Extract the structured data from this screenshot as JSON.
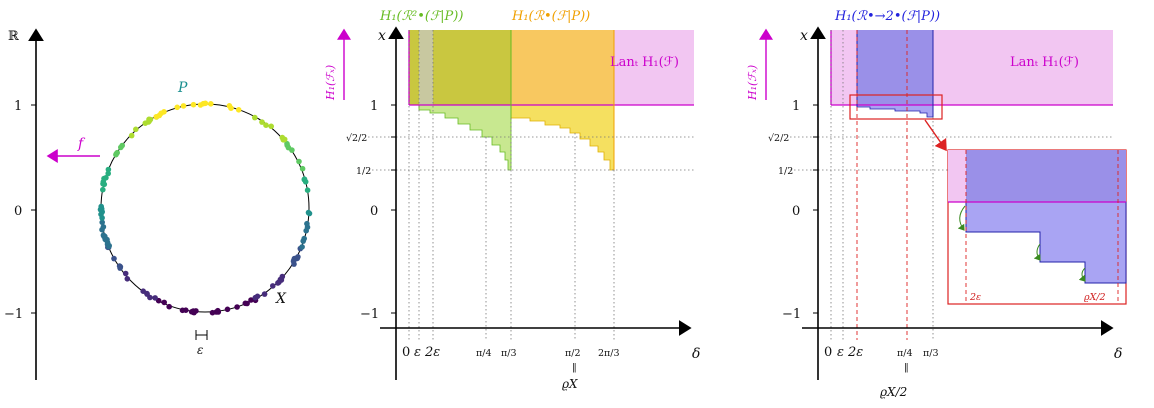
{
  "panel1": {
    "axis_label": "ℝ",
    "y_ticks": [
      "1",
      "0",
      "−1"
    ],
    "f_label": "f",
    "P_label": "P",
    "X_label": "X",
    "eps_label": "ε"
  },
  "panel2": {
    "title_green": "H₁(ℛ²•(ℱ|P))",
    "title_orange": "H₁(ℛ•(ℱ|P))",
    "lan_label": "Lanₜ H₁(ℱ)",
    "y_axis_label": "x",
    "y_side_label": "H₁(ℱₓ)",
    "y_ticks": [
      "1",
      "√2/2",
      "1/2",
      "0",
      "−1"
    ],
    "x_ticks": [
      "0",
      "ε",
      "2ε",
      "π/4",
      "π/3",
      "π/2",
      "2π/3"
    ],
    "equals_label": "‖",
    "rho_label": "ϱX",
    "x_axis_label": "δ"
  },
  "panel3": {
    "title_blue": "H₁(ℛ•→2•(ℱ|P))",
    "lan_label": "Lanₜ H₁(ℱ)",
    "y_axis_label": "x",
    "y_side_label": "H₁(ℱₓ)",
    "y_ticks": [
      "1",
      "√2/2",
      "1/2",
      "0",
      "−1"
    ],
    "x_ticks": [
      "0",
      "ε",
      "2ε",
      "π/4",
      "π/3"
    ],
    "equals_label": "‖",
    "rho_label": "ϱX/2",
    "x_axis_label": "δ",
    "inset_left_label": "2ε",
    "inset_right_label": "ϱX/2"
  },
  "colors": {
    "magenta": "#cc00cc",
    "magenta_fill": "#f2c6f2",
    "green_fill": "#c8e890",
    "olive_fill": "#c9c740",
    "orange_fill": "#f8c860",
    "yellow_fill": "#f5e060",
    "blue_fill": "#a9a4f3",
    "purple_fill": "#9a90e8",
    "red": "#dd2222"
  }
}
